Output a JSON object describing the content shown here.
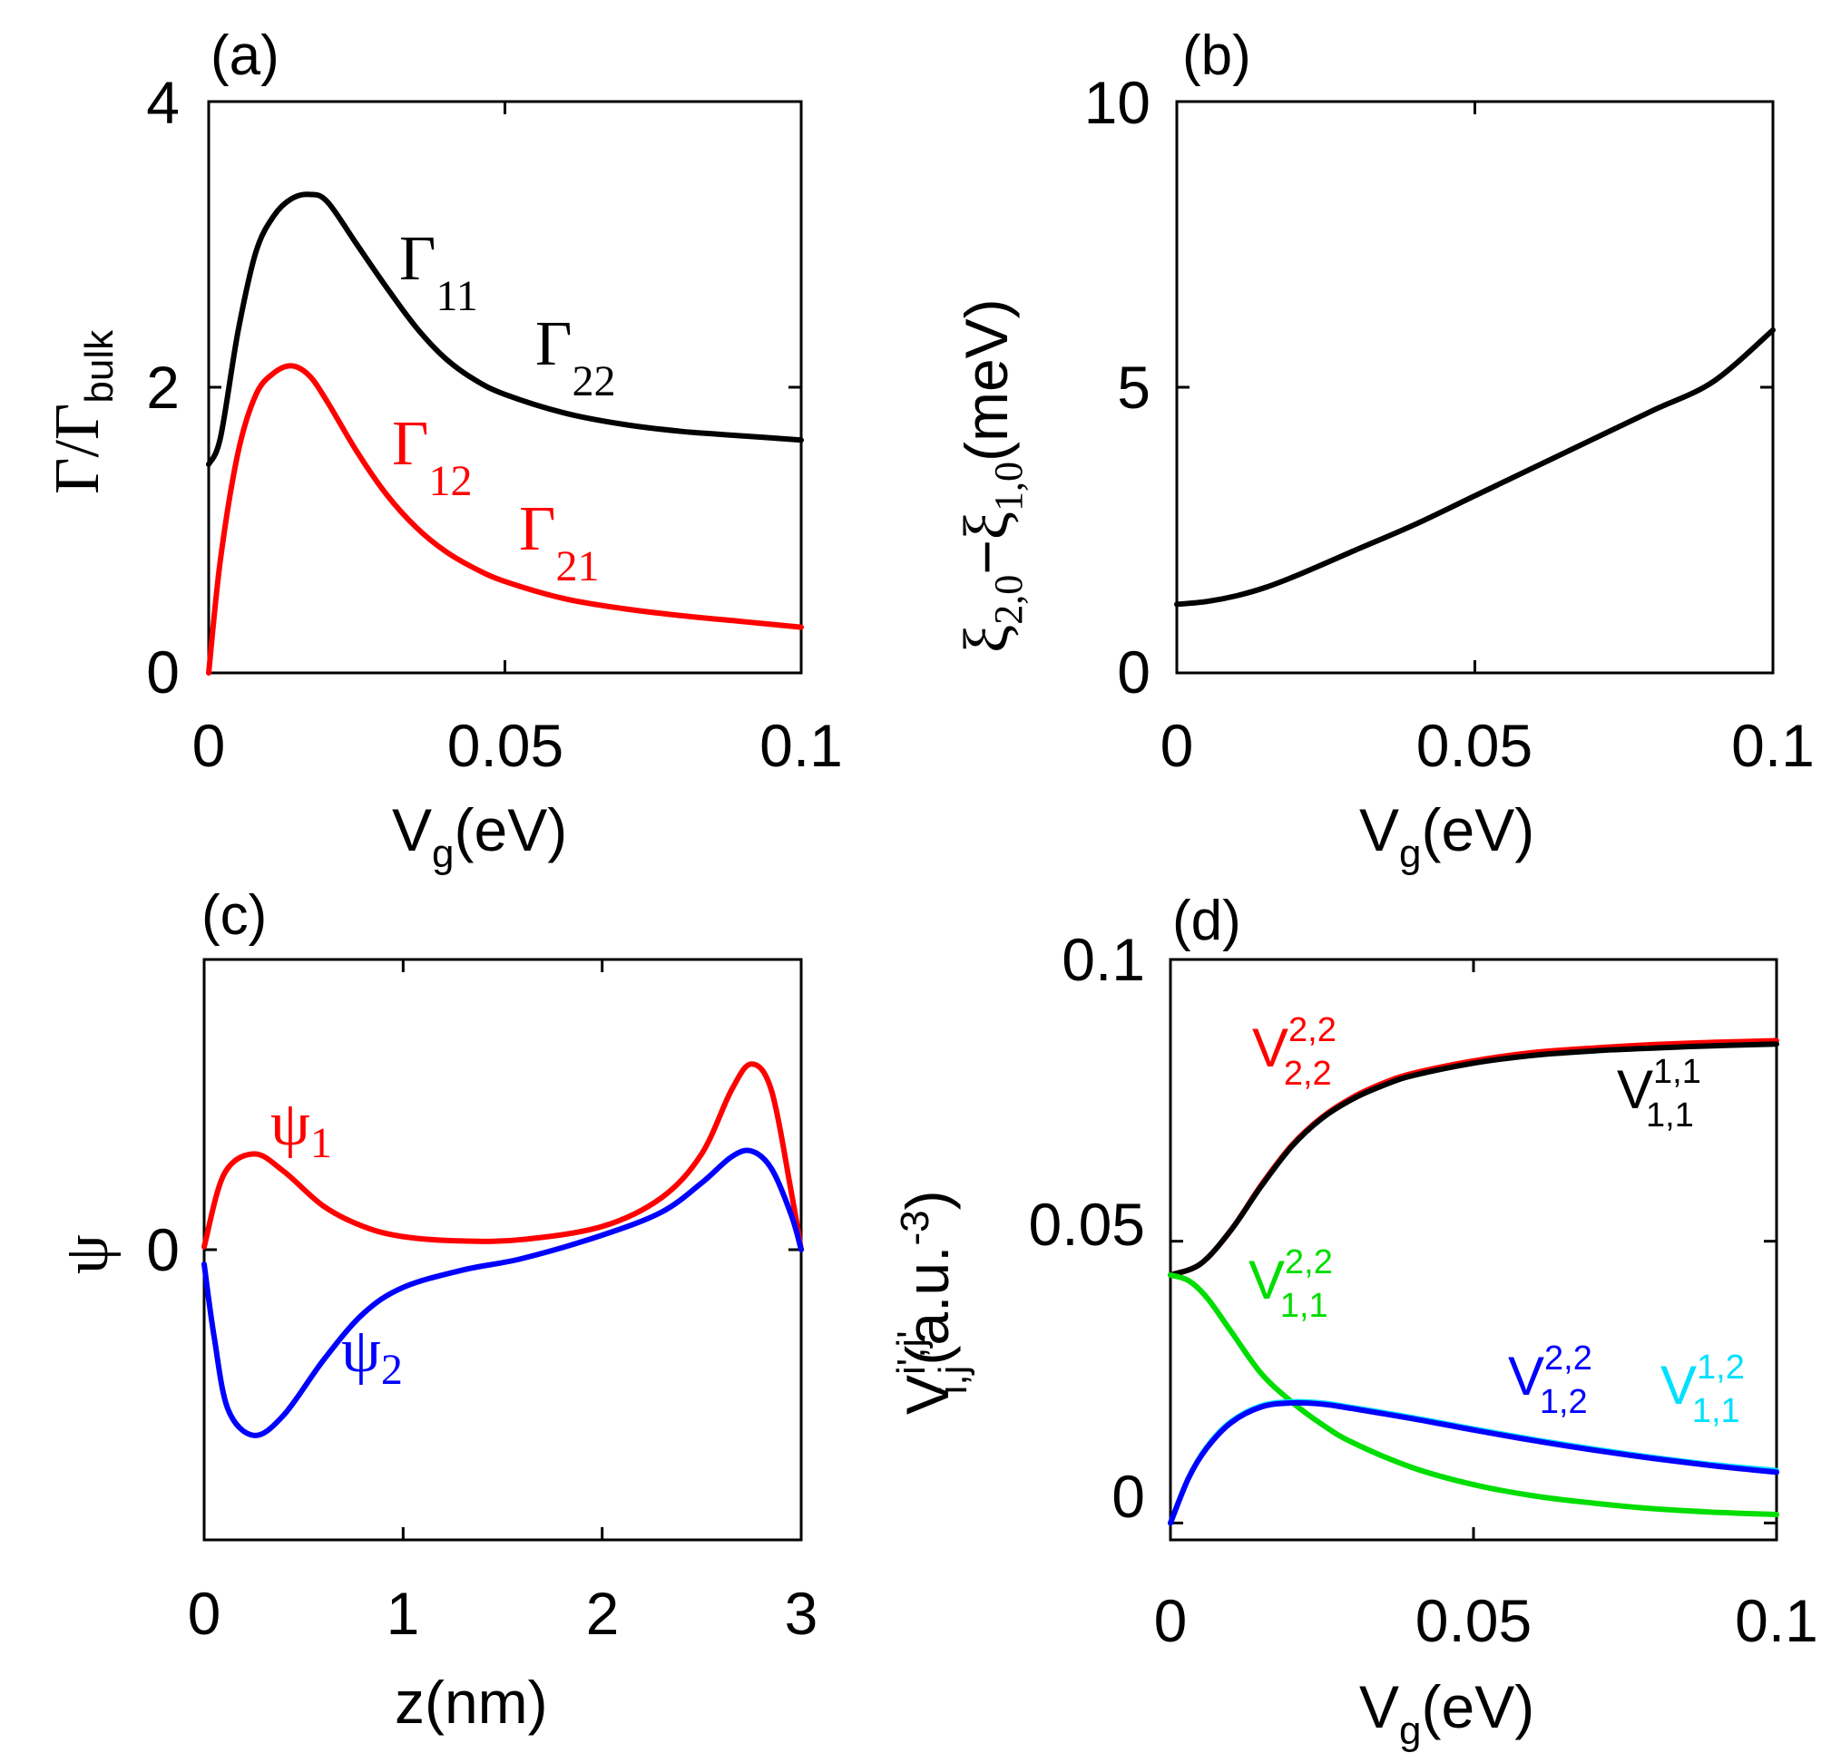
{
  "colors": {
    "black": "#000000",
    "red": "#ff0000",
    "blue": "#0000ff",
    "green": "#00dd00",
    "cyan": "#00e0ff"
  },
  "chart_data": [
    {
      "panel": "(a)",
      "type": "line",
      "xlabel_main": "V",
      "xlabel_sub": "g",
      "xlabel_unit": "(eV)",
      "ylabel_main": "Γ/Γ",
      "ylabel_sub": "bulk",
      "xlim": [
        0,
        0.1
      ],
      "ylim": [
        0,
        4
      ],
      "xticks": [
        0,
        0.05,
        0.1
      ],
      "xtick_labels": [
        "0",
        "0.05",
        "0.1"
      ],
      "yticks": [
        0,
        2,
        4
      ],
      "ytick_labels": [
        "0",
        "2",
        "4"
      ],
      "annotations": [
        {
          "main": "Γ",
          "sub": "11",
          "color": "#000000"
        },
        {
          "main": "Γ",
          "sub": "22",
          "color": "#000000"
        },
        {
          "main": "Γ",
          "sub": "12",
          "color": "#ff0000"
        },
        {
          "main": "Γ",
          "sub": "21",
          "color": "#ff0000"
        }
      ],
      "series": [
        {
          "name": "Γ11 = Γ22",
          "color": "#000000",
          "x": [
            0,
            0.002,
            0.005,
            0.008,
            0.011,
            0.014,
            0.017,
            0.02,
            0.025,
            0.03,
            0.035,
            0.04,
            0.045,
            0.05,
            0.06,
            0.07,
            0.08,
            0.09,
            0.1
          ],
          "y": [
            1.46,
            1.65,
            2.4,
            2.95,
            3.2,
            3.32,
            3.35,
            3.3,
            3.0,
            2.7,
            2.42,
            2.2,
            2.05,
            1.95,
            1.82,
            1.74,
            1.69,
            1.66,
            1.63
          ]
        },
        {
          "name": "Γ12 = Γ21",
          "color": "#ff0000",
          "x": [
            0,
            0.002,
            0.005,
            0.008,
            0.011,
            0.014,
            0.017,
            0.02,
            0.025,
            0.03,
            0.035,
            0.04,
            0.045,
            0.05,
            0.06,
            0.07,
            0.08,
            0.09,
            0.1
          ],
          "y": [
            0,
            0.8,
            1.55,
            1.95,
            2.1,
            2.15,
            2.08,
            1.9,
            1.55,
            1.25,
            1.02,
            0.85,
            0.73,
            0.64,
            0.52,
            0.45,
            0.4,
            0.36,
            0.32
          ]
        }
      ]
    },
    {
      "panel": "(b)",
      "type": "line",
      "xlabel_main": "V",
      "xlabel_sub": "g",
      "xlabel_unit": "(eV)",
      "ylabel_main": "ξ",
      "ylabel_sub1": "2,0",
      "ylabel_minus": "−",
      "ylabel_sub2": "1,0",
      "ylabel_unit": "(meV)",
      "xlim": [
        0,
        0.1
      ],
      "ylim": [
        0,
        10
      ],
      "xticks": [
        0,
        0.05,
        0.1
      ],
      "xtick_labels": [
        "0",
        "0.05",
        "0.1"
      ],
      "yticks": [
        0,
        5,
        10
      ],
      "ytick_labels": [
        "0",
        "5",
        "10"
      ],
      "series": [
        {
          "name": "ξ2,0 − ξ1,0",
          "color": "#000000",
          "x": [
            0,
            0.005,
            0.01,
            0.015,
            0.02,
            0.03,
            0.04,
            0.05,
            0.06,
            0.07,
            0.08,
            0.09,
            0.1
          ],
          "y": [
            1.2,
            1.25,
            1.35,
            1.5,
            1.7,
            2.15,
            2.6,
            3.1,
            3.6,
            4.1,
            4.6,
            5.1,
            6.0
          ]
        }
      ]
    },
    {
      "panel": "(c)",
      "type": "line",
      "xlabel_main": "z(nm)",
      "ylabel_main": "ψ",
      "xlim": [
        0,
        3
      ],
      "ylim": [
        -1,
        1
      ],
      "xticks": [
        0,
        1,
        2,
        3
      ],
      "xtick_labels": [
        "0",
        "1",
        "2",
        "3"
      ],
      "yticks": [
        0
      ],
      "ytick_labels": [
        "0"
      ],
      "annotations": [
        {
          "main": "ψ",
          "sub": "1",
          "color": "#ff0000"
        },
        {
          "main": "ψ",
          "sub": "2",
          "color": "#0000ff"
        }
      ],
      "series": [
        {
          "name": "ψ1",
          "color": "#ff0000",
          "x": [
            0,
            0.1,
            0.25,
            0.4,
            0.6,
            0.8,
            1.0,
            1.3,
            1.6,
            2.0,
            2.3,
            2.5,
            2.65,
            2.75,
            2.85,
            2.95,
            3.0
          ],
          "y": [
            0.01,
            0.26,
            0.33,
            0.27,
            0.15,
            0.08,
            0.045,
            0.03,
            0.035,
            0.08,
            0.18,
            0.33,
            0.55,
            0.64,
            0.55,
            0.2,
            0.0
          ]
        },
        {
          "name": "ψ2",
          "color": "#0000ff",
          "x": [
            0,
            0.05,
            0.12,
            0.25,
            0.4,
            0.6,
            0.8,
            1.0,
            1.3,
            1.6,
            2.0,
            2.3,
            2.5,
            2.65,
            2.75,
            2.85,
            2.95,
            3.0
          ],
          "y": [
            -0.05,
            -0.3,
            -0.55,
            -0.64,
            -0.57,
            -0.38,
            -0.22,
            -0.13,
            -0.07,
            -0.03,
            0.05,
            0.13,
            0.23,
            0.32,
            0.34,
            0.28,
            0.12,
            0.0
          ]
        }
      ]
    },
    {
      "panel": "(d)",
      "type": "line",
      "xlabel_main": "V",
      "xlabel_sub": "g",
      "xlabel_unit": "(eV)",
      "ylabel_main": "V",
      "ylabel_sup": "i',j'",
      "ylabel_sub": "i,j",
      "ylabel_unit": "(a.u.",
      "ylabel_unit_sup": "-3",
      "ylabel_unit_close": ")",
      "xlim": [
        0,
        0.1
      ],
      "ylim": [
        -0.003,
        0.1
      ],
      "xticks": [
        0,
        0.05,
        0.1
      ],
      "xtick_labels": [
        "0",
        "0.05",
        "0.1"
      ],
      "yticks": [
        0,
        0.05,
        0.1
      ],
      "ytick_labels": [
        "0",
        "0.05",
        "0.1"
      ],
      "annotations": [
        {
          "main": "V",
          "sup": "2,2",
          "sub": "2,2",
          "color": "#ff0000"
        },
        {
          "main": "V",
          "sup": "1,1",
          "sub": "1,1",
          "color": "#000000"
        },
        {
          "main": "V",
          "sup": "2,2",
          "sub": "1,1",
          "color": "#00dd00"
        },
        {
          "main": "V",
          "sup": "2,2",
          "sub": "1,2",
          "color": "#0000ff"
        },
        {
          "main": "V",
          "sup": "1,2",
          "sub": "1,1",
          "color": "#00e0ff"
        }
      ],
      "series": [
        {
          "name": "V 2,2 / 2,2",
          "color": "#ff0000",
          "x": [
            0,
            0.005,
            0.01,
            0.015,
            0.02,
            0.025,
            0.03,
            0.035,
            0.04,
            0.05,
            0.06,
            0.07,
            0.08,
            0.09,
            0.1
          ],
          "y": [
            0.044,
            0.046,
            0.052,
            0.06,
            0.067,
            0.072,
            0.0755,
            0.078,
            0.0798,
            0.082,
            0.0835,
            0.0843,
            0.0849,
            0.0853,
            0.0856
          ]
        },
        {
          "name": "V 1,1 / 1,1",
          "color": "#000000",
          "x": [
            0,
            0.005,
            0.01,
            0.015,
            0.02,
            0.025,
            0.03,
            0.035,
            0.04,
            0.05,
            0.06,
            0.07,
            0.08,
            0.09,
            0.1
          ],
          "y": [
            0.044,
            0.046,
            0.052,
            0.0598,
            0.0668,
            0.0718,
            0.0752,
            0.0776,
            0.0794,
            0.0816,
            0.083,
            0.0838,
            0.0843,
            0.0847,
            0.085
          ]
        },
        {
          "name": "V 2,2 / 1,1",
          "color": "#00dd00",
          "x": [
            0,
            0.003,
            0.006,
            0.01,
            0.015,
            0.02,
            0.025,
            0.03,
            0.04,
            0.05,
            0.06,
            0.07,
            0.08,
            0.09,
            0.1
          ],
          "y": [
            0.044,
            0.043,
            0.04,
            0.034,
            0.0265,
            0.0215,
            0.0175,
            0.0143,
            0.0098,
            0.0068,
            0.0048,
            0.0035,
            0.0025,
            0.0019,
            0.0015
          ]
        },
        {
          "name": "V 1,2 / 1,1",
          "color": "#00e0ff",
          "x": [
            0,
            0.003,
            0.006,
            0.01,
            0.015,
            0.02,
            0.025,
            0.03,
            0.04,
            0.05,
            0.06,
            0.07,
            0.08,
            0.09,
            0.1
          ],
          "y": [
            0,
            0.008,
            0.0135,
            0.018,
            0.0208,
            0.0215,
            0.0213,
            0.0205,
            0.0187,
            0.0167,
            0.0148,
            0.0131,
            0.0116,
            0.0103,
            0.0093
          ]
        },
        {
          "name": "V 2,2 / 1,2",
          "color": "#0000ff",
          "x": [
            0,
            0.003,
            0.006,
            0.01,
            0.015,
            0.02,
            0.025,
            0.03,
            0.04,
            0.05,
            0.06,
            0.07,
            0.08,
            0.09,
            0.1
          ],
          "y": [
            0,
            0.008,
            0.0133,
            0.0178,
            0.0206,
            0.0213,
            0.0211,
            0.0203,
            0.0185,
            0.0165,
            0.0146,
            0.0129,
            0.0114,
            0.0101,
            0.009
          ]
        }
      ]
    }
  ]
}
